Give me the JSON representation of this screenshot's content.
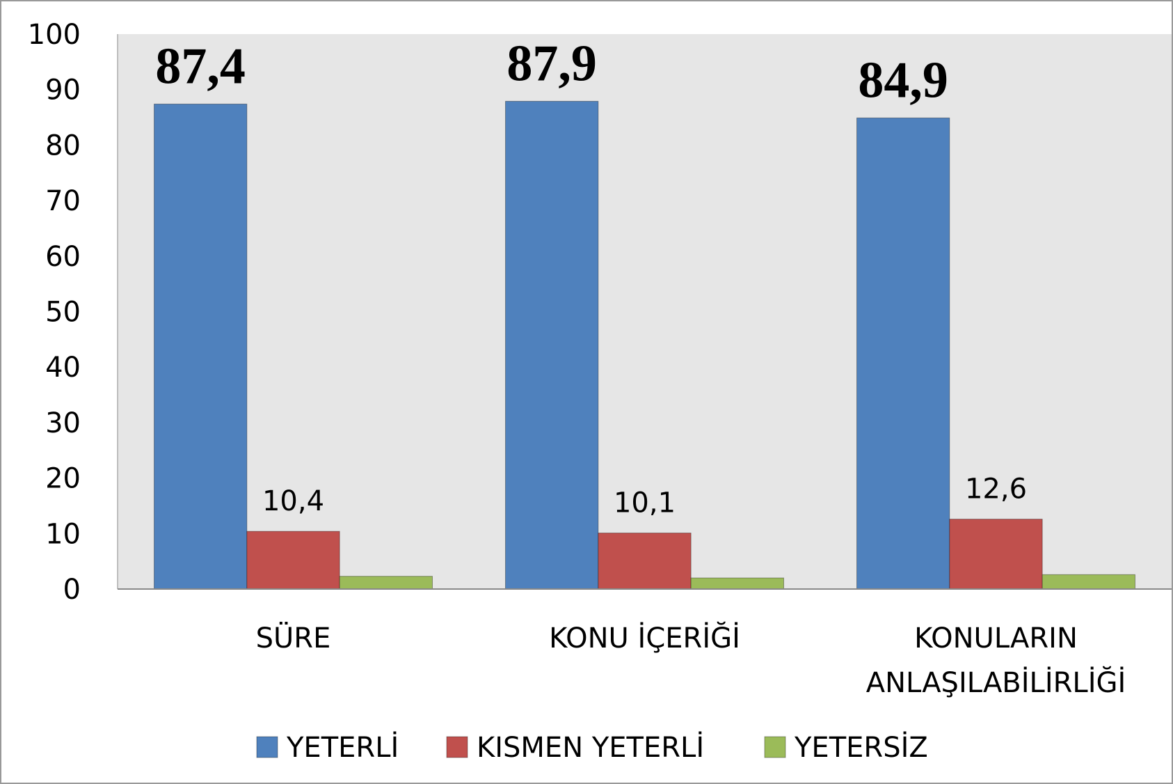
{
  "chart_data": {
    "type": "bar",
    "categories": [
      "SÜRE",
      "KONU İÇERİĞİ",
      "KONULARIN\nANLAŞILABİLİRLİĞİ"
    ],
    "series": [
      {
        "name": "YETERLİ",
        "color": "#4f81bd",
        "values": [
          87.4,
          87.9,
          84.9
        ],
        "value_labels": [
          "87,4",
          "87,9",
          "84,9"
        ]
      },
      {
        "name": "KISMEN YETERLİ",
        "color": "#c0504d",
        "values": [
          10.4,
          10.1,
          12.6
        ],
        "value_labels": [
          "10,4",
          "10,1",
          "12,6"
        ]
      },
      {
        "name": "YETERSİZ",
        "color": "#9bbb59",
        "values": [
          2.3,
          2.0,
          2.6
        ]
      }
    ],
    "ylim": [
      0,
      100
    ],
    "yticks": [
      0,
      10,
      20,
      30,
      40,
      50,
      60,
      70,
      80,
      90,
      100
    ],
    "grid": false,
    "legend": "bottom"
  }
}
